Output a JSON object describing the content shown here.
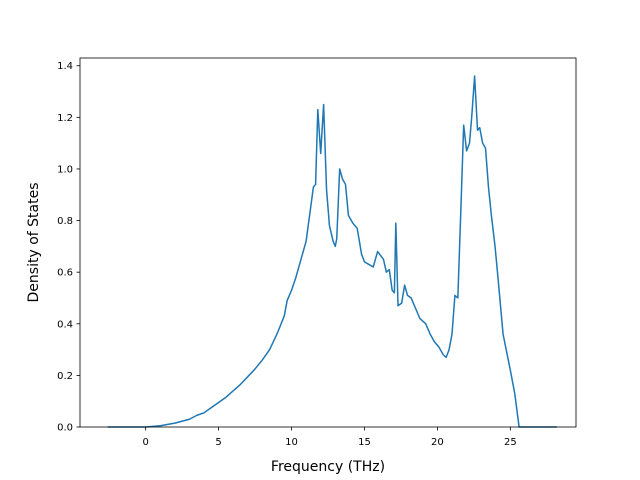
{
  "chart_data": {
    "type": "line",
    "title": "",
    "xlabel": "Frequency (THz)",
    "ylabel": "Density of States",
    "xlim": [
      -4.5,
      29.5
    ],
    "ylim": [
      0.0,
      1.43
    ],
    "xticks": [
      0,
      5,
      10,
      15,
      20,
      25
    ],
    "xtick_labels": [
      "0",
      "5",
      "10",
      "15",
      "20",
      "25"
    ],
    "yticks": [
      0.0,
      0.2,
      0.4,
      0.6,
      0.8,
      1.0,
      1.2,
      1.4
    ],
    "ytick_labels": [
      "0.0",
      "0.2",
      "0.4",
      "0.6",
      "0.8",
      "1.0",
      "1.2",
      "1.4"
    ],
    "grid": false,
    "color": "#1f77b4",
    "series": [
      {
        "x": [
          -2.6,
          -1.0,
          0.0,
          1.0,
          2.0,
          3.0,
          3.5,
          4.0,
          4.5,
          5.0,
          5.5,
          6.0,
          6.5,
          7.0,
          7.5,
          8.0,
          8.5,
          9.0,
          9.5,
          9.7,
          10.0,
          10.3,
          10.6,
          11.0,
          11.5,
          11.65,
          11.8,
          12.0,
          12.2,
          12.4,
          12.6,
          12.85,
          13.0,
          13.1,
          13.3,
          13.5,
          13.7,
          13.9,
          14.2,
          14.5,
          14.8,
          15.0,
          15.3,
          15.6,
          15.9,
          16.3,
          16.5,
          16.7,
          16.9,
          17.05,
          17.15,
          17.3,
          17.55,
          17.75,
          17.95,
          18.2,
          18.5,
          18.8,
          19.2,
          19.5,
          19.8,
          20.1,
          20.4,
          20.6,
          20.8,
          21.0,
          21.2,
          21.4,
          21.6,
          21.8,
          22.0,
          22.2,
          22.35,
          22.55,
          22.75,
          22.9,
          23.1,
          23.3,
          23.5,
          23.7,
          23.95,
          24.15,
          24.5,
          25.0,
          25.3,
          25.6,
          26.5,
          28.2
        ],
        "y": [
          0.0,
          0.0,
          0.0,
          0.005,
          0.015,
          0.03,
          0.045,
          0.055,
          0.075,
          0.095,
          0.115,
          0.14,
          0.165,
          0.195,
          0.225,
          0.26,
          0.3,
          0.36,
          0.43,
          0.49,
          0.53,
          0.58,
          0.64,
          0.72,
          0.93,
          0.94,
          1.23,
          1.06,
          1.25,
          0.92,
          0.78,
          0.72,
          0.7,
          0.73,
          1.0,
          0.96,
          0.94,
          0.82,
          0.79,
          0.77,
          0.67,
          0.64,
          0.63,
          0.62,
          0.68,
          0.65,
          0.6,
          0.61,
          0.53,
          0.52,
          0.79,
          0.47,
          0.48,
          0.55,
          0.51,
          0.5,
          0.46,
          0.42,
          0.4,
          0.36,
          0.33,
          0.31,
          0.28,
          0.27,
          0.3,
          0.36,
          0.51,
          0.5,
          0.83,
          1.17,
          1.07,
          1.1,
          1.2,
          1.36,
          1.15,
          1.16,
          1.1,
          1.08,
          0.93,
          0.82,
          0.7,
          0.58,
          0.36,
          0.22,
          0.13,
          0.0,
          0.0,
          0.0
        ]
      }
    ]
  }
}
